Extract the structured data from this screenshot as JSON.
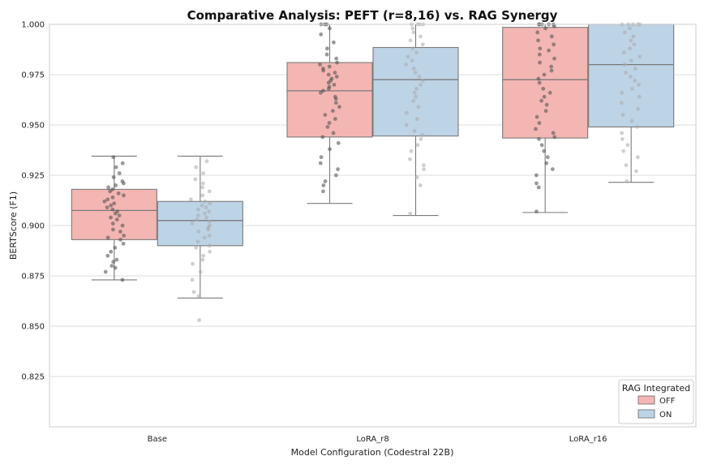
{
  "chart_data": {
    "type": "box",
    "title": "Comparative Analysis: PEFT (r=8,16) vs. RAG Synergy",
    "xlabel": "Model Configuration (Codestral 22B)",
    "ylabel": "BERTScore (F1)",
    "categories": [
      "Base",
      "LoRA_r8",
      "LoRA_r16"
    ],
    "ylim": [
      0.8,
      1.0
    ],
    "yticks": [
      0.825,
      0.85,
      0.875,
      0.9,
      0.925,
      0.95,
      0.975,
      1.0
    ],
    "ytick_labels": [
      "0.825",
      "0.850",
      "0.875",
      "0.900",
      "0.925",
      "0.950",
      "0.975",
      "1.000"
    ],
    "grid": true,
    "legend": {
      "title": "RAG Integrated",
      "position": "lower-right"
    },
    "series": [
      {
        "name": "OFF",
        "color": "#f4b6b3",
        "point_color": "#555555",
        "boxes": [
          {
            "category": "Base",
            "min": 0.873,
            "q1": 0.893,
            "median": 0.9075,
            "q3": 0.918,
            "max": 0.9345
          },
          {
            "category": "LoRA_r8",
            "min": 0.911,
            "q1": 0.944,
            "median": 0.967,
            "q3": 0.981,
            "max": 1.0
          },
          {
            "category": "LoRA_r16",
            "min": 0.9065,
            "q1": 0.9435,
            "median": 0.9725,
            "q3": 0.9985,
            "max": 1.0
          }
        ],
        "points": [
          [
            0.873,
            0.877,
            0.879,
            0.88,
            0.882,
            0.883,
            0.885,
            0.887,
            0.889,
            0.891,
            0.893,
            0.894,
            0.895,
            0.897,
            0.898,
            0.9,
            0.901,
            0.903,
            0.904,
            0.905,
            0.906,
            0.907,
            0.908,
            0.909,
            0.91,
            0.911,
            0.912,
            0.913,
            0.914,
            0.915,
            0.916,
            0.917,
            0.918,
            0.919,
            0.92,
            0.921,
            0.922,
            0.924,
            0.926,
            0.929,
            0.931,
            0.934
          ],
          [
            0.917,
            0.92,
            0.922,
            0.925,
            0.928,
            0.931,
            0.934,
            0.938,
            0.941,
            0.944,
            0.946,
            0.949,
            0.951,
            0.953,
            0.955,
            0.957,
            0.959,
            0.961,
            0.963,
            0.964,
            0.966,
            0.967,
            0.968,
            0.969,
            0.97,
            0.971,
            0.972,
            0.973,
            0.974,
            0.975,
            0.976,
            0.977,
            0.978,
            0.979,
            0.98,
            0.981,
            0.983,
            0.985,
            0.988,
            0.991,
            0.995,
            0.998,
            1.0,
            1.0,
            1.0
          ],
          [
            0.907,
            0.919,
            0.921,
            0.925,
            0.928,
            0.931,
            0.934,
            0.937,
            0.94,
            0.943,
            0.944,
            0.946,
            0.948,
            0.951,
            0.954,
            0.957,
            0.96,
            0.962,
            0.964,
            0.966,
            0.968,
            0.971,
            0.973,
            0.975,
            0.977,
            0.979,
            0.981,
            0.983,
            0.985,
            0.987,
            0.988,
            0.99,
            0.992,
            0.994,
            0.996,
            0.998,
            0.999,
            1.0,
            1.0,
            1.0,
            1.0,
            1.0
          ]
        ]
      },
      {
        "name": "ON",
        "color": "#bdd3e6",
        "point_color": "#aaaaaa",
        "boxes": [
          {
            "category": "Base",
            "min": 0.864,
            "q1": 0.89,
            "median": 0.9025,
            "q3": 0.912,
            "max": 0.9345
          },
          {
            "category": "LoRA_r8",
            "min": 0.905,
            "q1": 0.9445,
            "median": 0.9725,
            "q3": 0.9885,
            "max": 1.0
          },
          {
            "category": "LoRA_r16",
            "min": 0.9215,
            "q1": 0.949,
            "median": 0.98,
            "q3": 1.0,
            "max": 1.0
          }
        ],
        "points": [
          [
            0.853,
            0.865,
            0.867,
            0.873,
            0.877,
            0.881,
            0.883,
            0.885,
            0.887,
            0.889,
            0.89,
            0.892,
            0.894,
            0.895,
            0.897,
            0.898,
            0.899,
            0.9,
            0.901,
            0.902,
            0.903,
            0.904,
            0.905,
            0.906,
            0.907,
            0.908,
            0.909,
            0.91,
            0.911,
            0.912,
            0.913,
            0.915,
            0.917,
            0.919,
            0.921,
            0.923,
            0.926,
            0.929,
            0.932
          ],
          [
            0.906,
            0.92,
            0.924,
            0.928,
            0.93,
            0.933,
            0.937,
            0.94,
            0.943,
            0.945,
            0.947,
            0.95,
            0.953,
            0.956,
            0.959,
            0.962,
            0.964,
            0.966,
            0.968,
            0.97,
            0.972,
            0.974,
            0.976,
            0.978,
            0.98,
            0.982,
            0.984,
            0.986,
            0.988,
            0.99,
            0.992,
            0.994,
            0.996,
            0.998,
            1.0,
            1.0,
            1.0,
            1.0
          ],
          [
            0.922,
            0.927,
            0.93,
            0.934,
            0.937,
            0.94,
            0.943,
            0.946,
            0.949,
            0.952,
            0.955,
            0.958,
            0.961,
            0.964,
            0.966,
            0.968,
            0.97,
            0.972,
            0.974,
            0.976,
            0.978,
            0.98,
            0.982,
            0.984,
            0.986,
            0.988,
            0.99,
            0.992,
            0.994,
            0.996,
            0.998,
            1.0,
            1.0,
            1.0,
            1.0,
            1.0
          ]
        ]
      }
    ]
  }
}
